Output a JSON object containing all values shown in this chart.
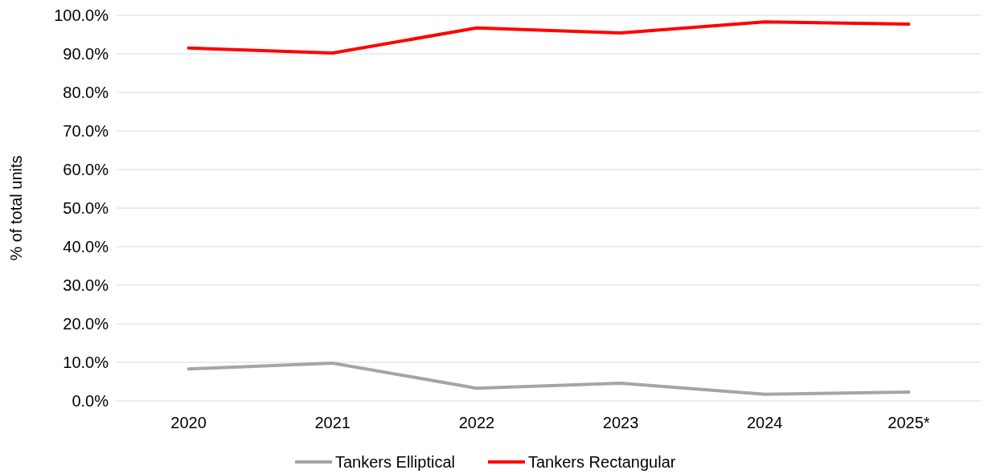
{
  "chart_data": {
    "type": "line",
    "ylabel": "% of total units",
    "categories": [
      "2020",
      "2021",
      "2022",
      "2023",
      "2024",
      "2025*"
    ],
    "series": [
      {
        "name": "Tankers Elliptical",
        "color": "#a5a5a5",
        "values": [
          8.3,
          9.8,
          3.3,
          4.6,
          1.7,
          2.3
        ]
      },
      {
        "name": "Tankers Rectangular",
        "color": "#ff0000",
        "values": [
          91.5,
          90.2,
          96.7,
          95.4,
          98.3,
          97.7
        ]
      }
    ],
    "ylim": [
      0,
      100
    ],
    "yticks": [
      {
        "value": 0,
        "label": "0.0%"
      },
      {
        "value": 10,
        "label": "10.0%"
      },
      {
        "value": 20,
        "label": "20.0%"
      },
      {
        "value": 30,
        "label": "30.0%"
      },
      {
        "value": 40,
        "label": "40.0%"
      },
      {
        "value": 50,
        "label": "50.0%"
      },
      {
        "value": 60,
        "label": "60.0%"
      },
      {
        "value": 70,
        "label": "70.0%"
      },
      {
        "value": 80,
        "label": "80.0%"
      },
      {
        "value": 90,
        "label": "90.0%"
      },
      {
        "value": 100,
        "label": "100.0%"
      }
    ],
    "grid": "y",
    "legend": "bottom",
    "marker": "none",
    "line_style": "solid"
  }
}
